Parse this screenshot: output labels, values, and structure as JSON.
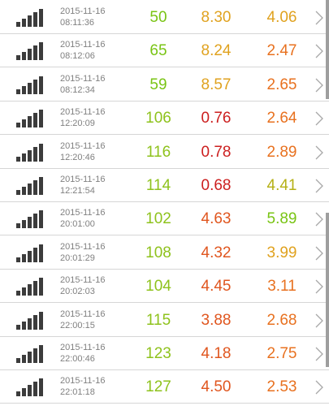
{
  "rows": [
    {
      "date": "2015-11-16",
      "time": "08:11:36",
      "v1": "50",
      "v2": "8.30",
      "v3": "4.06",
      "c1": "#79c414",
      "c2": "#e0a21f",
      "c3": "#e0a21f"
    },
    {
      "date": "2015-11-16",
      "time": "08:12:06",
      "v1": "65",
      "v2": "8.24",
      "v3": "2.47",
      "c1": "#79c414",
      "c2": "#e0a21f",
      "c3": "#e8711f"
    },
    {
      "date": "2015-11-16",
      "time": "08:12:34",
      "v1": "59",
      "v2": "8.57",
      "v3": "2.65",
      "c1": "#79c414",
      "c2": "#e0a21f",
      "c3": "#e8711f"
    },
    {
      "date": "2015-11-16",
      "time": "12:20:09",
      "v1": "106",
      "v2": "0.76",
      "v3": "2.64",
      "c1": "#8ec21c",
      "c2": "#cc1f1f",
      "c3": "#e8711f"
    },
    {
      "date": "2015-11-16",
      "time": "12:20:46",
      "v1": "116",
      "v2": "0.78",
      "v3": "2.89",
      "c1": "#8ec21c",
      "c2": "#cc1f1f",
      "c3": "#e8711f"
    },
    {
      "date": "2015-11-16",
      "time": "12:21:54",
      "v1": "114",
      "v2": "0.68",
      "v3": "4.41",
      "c1": "#8ec21c",
      "c2": "#cc1f1f",
      "c3": "#b5b014"
    },
    {
      "date": "2015-11-16",
      "time": "20:01:00",
      "v1": "102",
      "v2": "4.63",
      "v3": "5.89",
      "c1": "#8ec21c",
      "c2": "#e0561f",
      "c3": "#79c414"
    },
    {
      "date": "2015-11-16",
      "time": "20:01:29",
      "v1": "108",
      "v2": "4.32",
      "v3": "3.99",
      "c1": "#8ec21c",
      "c2": "#e0561f",
      "c3": "#e0a21f"
    },
    {
      "date": "2015-11-16",
      "time": "20:02:03",
      "v1": "104",
      "v2": "4.45",
      "v3": "3.11",
      "c1": "#8ec21c",
      "c2": "#e0561f",
      "c3": "#e8711f"
    },
    {
      "date": "2015-11-16",
      "time": "22:00:15",
      "v1": "115",
      "v2": "3.88",
      "v3": "2.68",
      "c1": "#8ec21c",
      "c2": "#e0561f",
      "c3": "#e8711f"
    },
    {
      "date": "2015-11-16",
      "time": "22:00:46",
      "v1": "123",
      "v2": "4.18",
      "v3": "2.75",
      "c1": "#8ec21c",
      "c2": "#e0561f",
      "c3": "#e8711f"
    },
    {
      "date": "2015-11-16",
      "time": "22:01:18",
      "v1": "127",
      "v2": "4.50",
      "v3": "2.53",
      "c1": "#8ec21c",
      "c2": "#e0561f",
      "c3": "#e8711f"
    }
  ],
  "icons": {
    "row_icon": "signal-bars-icon",
    "row_action": "chevron-right-icon"
  },
  "colors": {
    "divider": "#d6d6d6",
    "timestamp": "#808080",
    "icon": "#3c3c3c",
    "scrollbar": "#9e9e9e"
  }
}
